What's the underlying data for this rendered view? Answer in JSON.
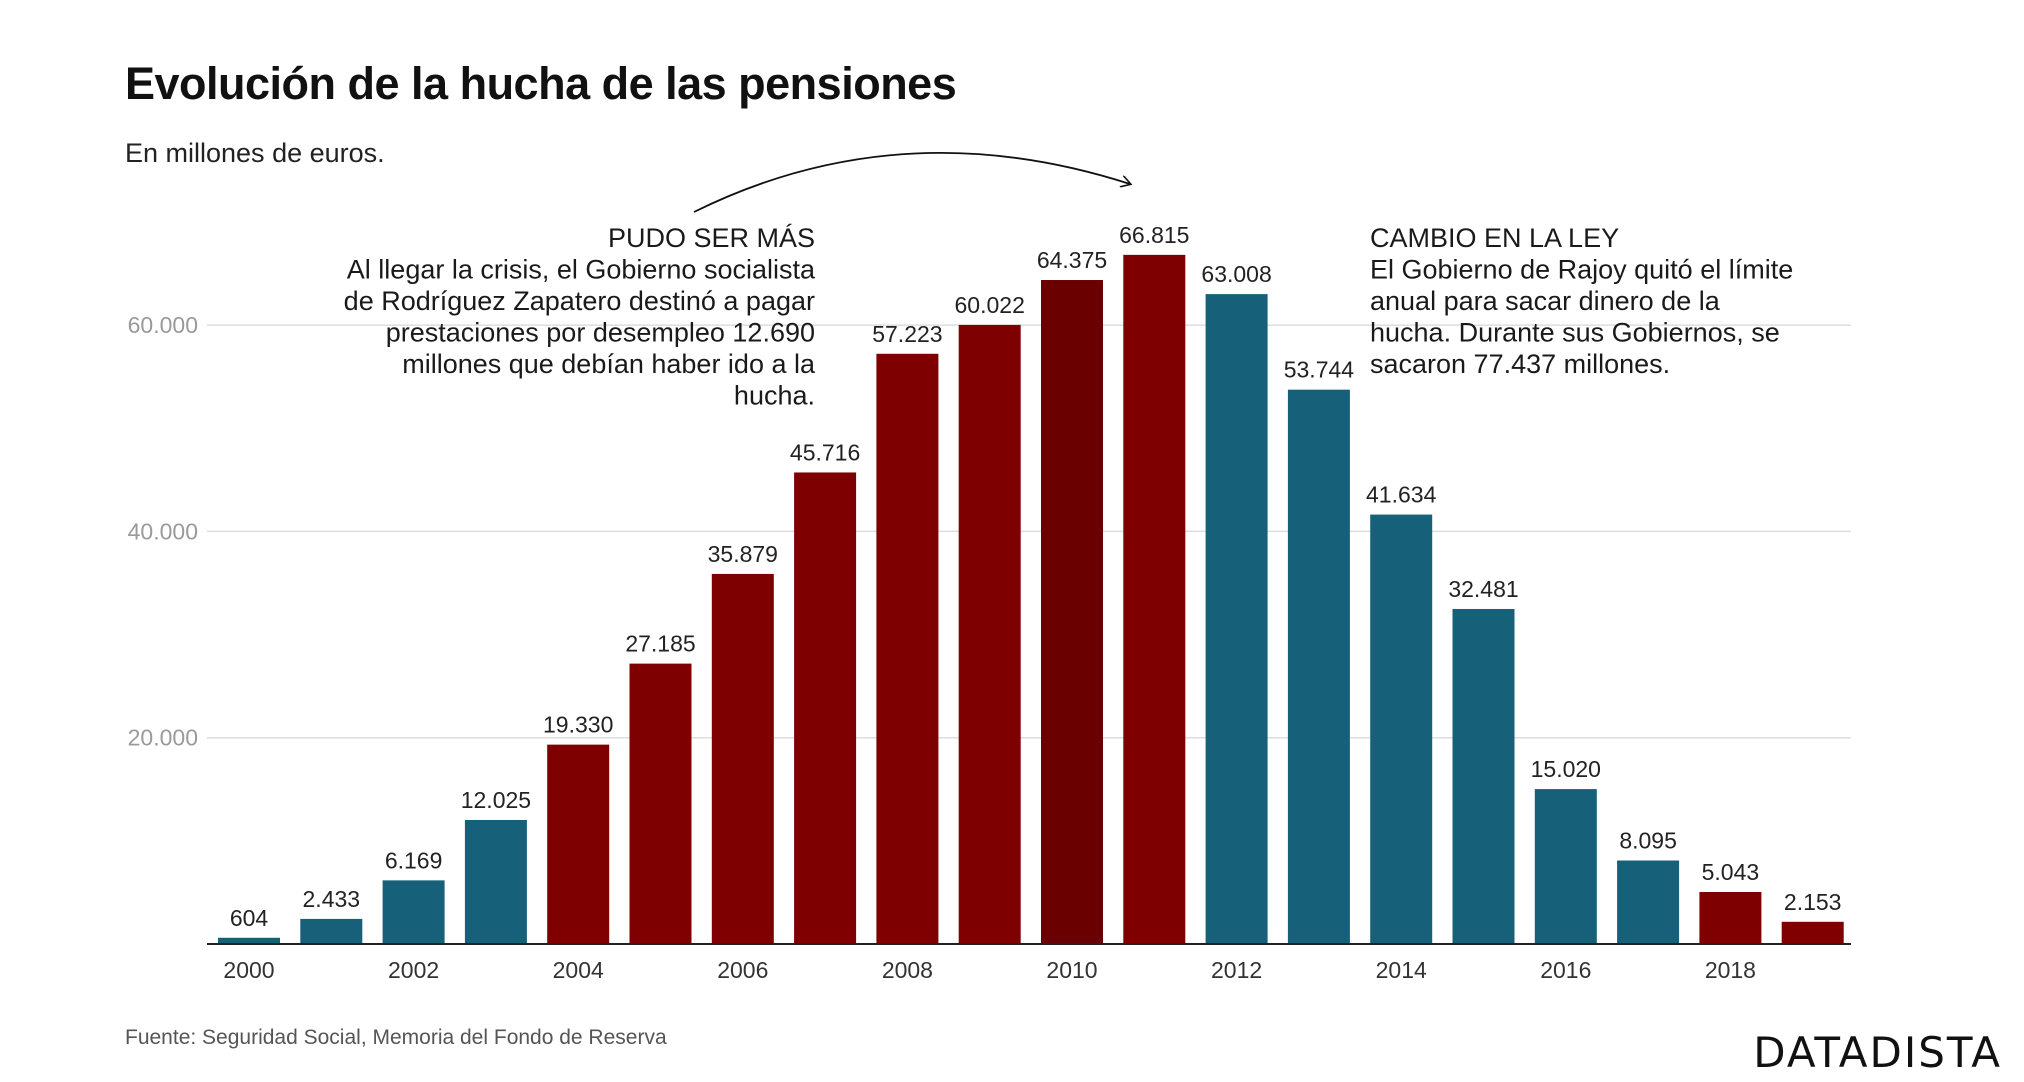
{
  "title": "Evolución de la hucha de las pensiones",
  "subtitle": "En millones de euros.",
  "source": "Fuente: Seguridad Social, Memoria del Fondo de Reserva",
  "brand": "DATADISTA",
  "colors": {
    "red": "#7f0000",
    "red_highlight": "#6b0000",
    "blue": "#17607a",
    "grid": "#dddddd",
    "axis": "#222222"
  },
  "chart_data": {
    "type": "bar",
    "categories": [
      "2000",
      "2001",
      "2002",
      "2003",
      "2004",
      "2005",
      "2006",
      "2007",
      "2008",
      "2009",
      "2010",
      "2011",
      "2012",
      "2013",
      "2014",
      "2015",
      "2016",
      "2017",
      "2018",
      "2019"
    ],
    "values": [
      604,
      2433,
      6169,
      12025,
      19330,
      27185,
      35879,
      45716,
      57223,
      60022,
      64375,
      66815,
      63008,
      53744,
      41634,
      32481,
      15020,
      8095,
      5043,
      2153
    ],
    "value_labels": [
      "604",
      "2.433",
      "6.169",
      "12.025",
      "19.330",
      "27.185",
      "35.879",
      "45.716",
      "57.223",
      "60.022",
      "64.375",
      "66.815",
      "63.008",
      "53.744",
      "41.634",
      "32.481",
      "15.020",
      "8.095",
      "5.043",
      "2.153"
    ],
    "bar_colors": [
      "blue",
      "blue",
      "blue",
      "blue",
      "red",
      "red",
      "red",
      "red",
      "red",
      "red",
      "red_highlight",
      "red",
      "blue",
      "blue",
      "blue",
      "blue",
      "blue",
      "blue",
      "red",
      "red"
    ],
    "x_tick_labels": [
      "2000",
      "2002",
      "2004",
      "2006",
      "2008",
      "2010",
      "2012",
      "2014",
      "2016",
      "2018"
    ],
    "y_ticks": [
      20000,
      40000,
      60000
    ],
    "y_tick_labels": [
      "20.000",
      "40.000",
      "60.000"
    ],
    "ylim": [
      0,
      70000
    ],
    "grid": true,
    "annotations": [
      {
        "title": "PUDO SER MÁS",
        "lines": [
          "Al llegar la crisis, el Gobierno socialista",
          "de Rodríguez Zapatero destinó a pagar",
          "prestaciones por desempleo 12.690",
          "millones que debían haber ido a la",
          "hucha."
        ],
        "align": "right",
        "arrow": true
      },
      {
        "title": "CAMBIO EN LA LEY",
        "lines": [
          "El Gobierno de Rajoy quitó el límite",
          "anual para sacar dinero de la",
          "hucha. Durante sus Gobiernos, se",
          "sacaron 77.437 millones."
        ],
        "align": "left",
        "arrow": false
      }
    ]
  }
}
